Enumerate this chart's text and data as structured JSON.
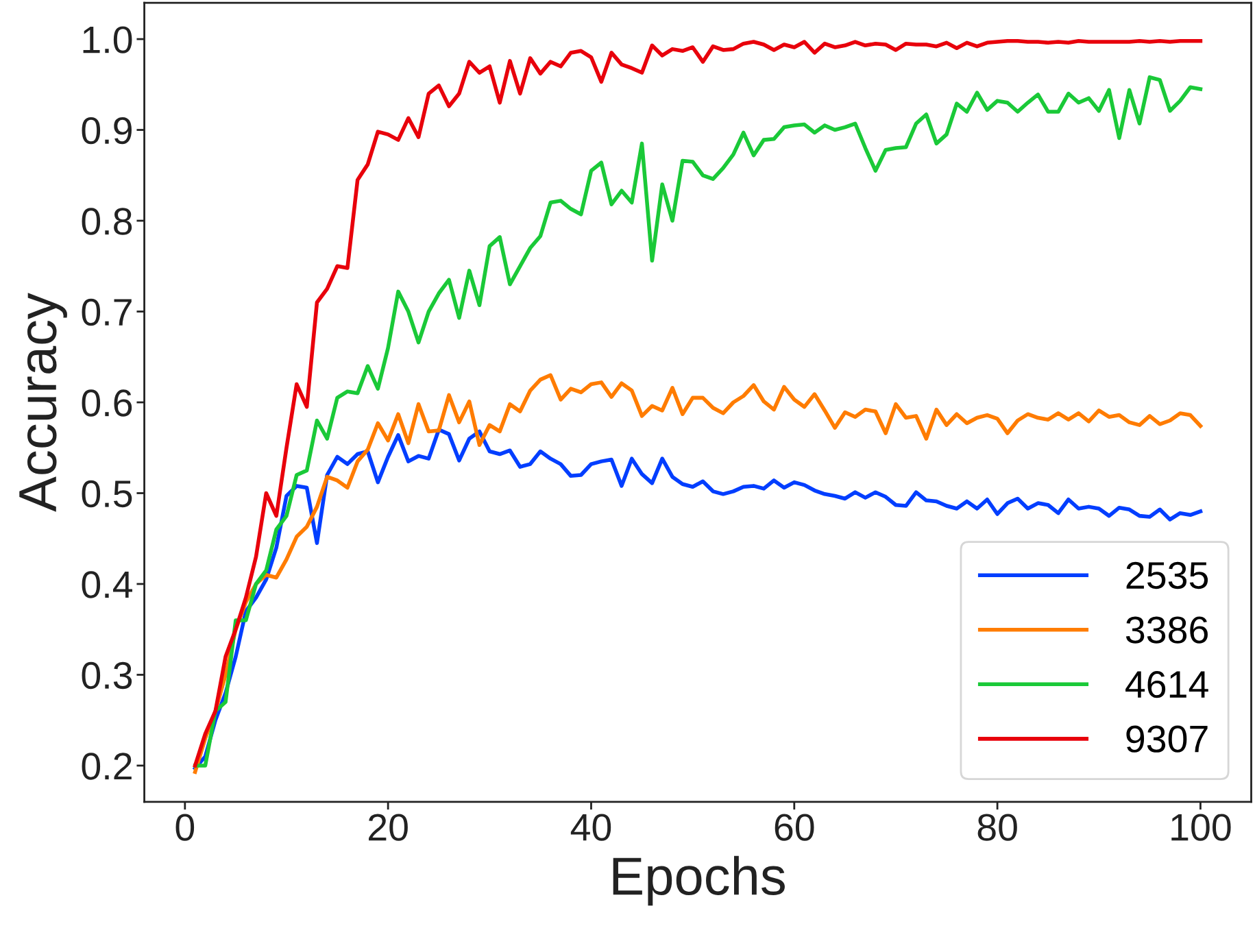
{
  "chart_data": {
    "type": "line",
    "xlabel": "Epochs",
    "ylabel": "Accuracy",
    "x": [
      1,
      2,
      3,
      4,
      5,
      6,
      7,
      8,
      9,
      10,
      11,
      12,
      13,
      14,
      15,
      16,
      17,
      18,
      19,
      20,
      21,
      22,
      23,
      24,
      25,
      26,
      27,
      28,
      29,
      30,
      31,
      32,
      33,
      34,
      35,
      36,
      37,
      38,
      39,
      40,
      41,
      42,
      43,
      44,
      45,
      46,
      47,
      48,
      49,
      50,
      51,
      52,
      53,
      54,
      55,
      56,
      57,
      58,
      59,
      60,
      61,
      62,
      63,
      64,
      65,
      66,
      67,
      68,
      69,
      70,
      71,
      72,
      73,
      74,
      75,
      76,
      77,
      78,
      79,
      80,
      81,
      82,
      83,
      84,
      85,
      86,
      87,
      88,
      89,
      90,
      91,
      92,
      93,
      94,
      95,
      96,
      97,
      98,
      99,
      100
    ],
    "series": [
      {
        "name": "2535",
        "color": "#023eff",
        "values": [
          0.197,
          0.21,
          0.25,
          0.28,
          0.32,
          0.37,
          0.385,
          0.405,
          0.44,
          0.497,
          0.508,
          0.506,
          0.445,
          0.52,
          0.54,
          0.532,
          0.543,
          0.546,
          0.512,
          0.54,
          0.564,
          0.535,
          0.541,
          0.538,
          0.57,
          0.565,
          0.536,
          0.56,
          0.568,
          0.546,
          0.543,
          0.547,
          0.529,
          0.532,
          0.546,
          0.538,
          0.532,
          0.519,
          0.52,
          0.532,
          0.535,
          0.537,
          0.508,
          0.538,
          0.521,
          0.511,
          0.538,
          0.518,
          0.51,
          0.507,
          0.513,
          0.502,
          0.499,
          0.502,
          0.507,
          0.508,
          0.505,
          0.514,
          0.506,
          0.512,
          0.509,
          0.503,
          0.499,
          0.497,
          0.494,
          0.501,
          0.495,
          0.501,
          0.496,
          0.487,
          0.486,
          0.501,
          0.492,
          0.491,
          0.486,
          0.483,
          0.491,
          0.483,
          0.493,
          0.477,
          0.489,
          0.494,
          0.483,
          0.489,
          0.487,
          0.478,
          0.493,
          0.483,
          0.485,
          0.483,
          0.475,
          0.484,
          0.482,
          0.475,
          0.474,
          0.482,
          0.471,
          0.478,
          0.476,
          0.48
        ]
      },
      {
        "name": "3386",
        "color": "#ff7c00",
        "values": [
          0.193,
          0.23,
          0.26,
          0.3,
          0.35,
          0.38,
          0.4,
          0.41,
          0.407,
          0.427,
          0.452,
          0.463,
          0.485,
          0.518,
          0.514,
          0.506,
          0.535,
          0.548,
          0.577,
          0.558,
          0.587,
          0.555,
          0.598,
          0.568,
          0.569,
          0.608,
          0.578,
          0.601,
          0.553,
          0.575,
          0.568,
          0.598,
          0.59,
          0.613,
          0.625,
          0.63,
          0.603,
          0.615,
          0.611,
          0.62,
          0.622,
          0.606,
          0.621,
          0.613,
          0.585,
          0.596,
          0.591,
          0.616,
          0.587,
          0.605,
          0.605,
          0.594,
          0.588,
          0.6,
          0.607,
          0.619,
          0.601,
          0.592,
          0.617,
          0.603,
          0.595,
          0.609,
          0.591,
          0.572,
          0.589,
          0.584,
          0.592,
          0.59,
          0.566,
          0.598,
          0.583,
          0.585,
          0.56,
          0.592,
          0.575,
          0.587,
          0.577,
          0.583,
          0.586,
          0.582,
          0.566,
          0.58,
          0.587,
          0.583,
          0.581,
          0.588,
          0.581,
          0.588,
          0.579,
          0.591,
          0.584,
          0.586,
          0.578,
          0.575,
          0.585,
          0.576,
          0.58,
          0.588,
          0.586,
          0.574
        ]
      },
      {
        "name": "4614",
        "color": "#1ac938",
        "values": [
          0.2,
          0.2,
          0.26,
          0.27,
          0.36,
          0.36,
          0.4,
          0.415,
          0.46,
          0.475,
          0.52,
          0.525,
          0.58,
          0.56,
          0.605,
          0.612,
          0.61,
          0.64,
          0.615,
          0.66,
          0.722,
          0.7,
          0.666,
          0.7,
          0.72,
          0.735,
          0.693,
          0.745,
          0.707,
          0.772,
          0.782,
          0.73,
          0.75,
          0.77,
          0.783,
          0.82,
          0.822,
          0.813,
          0.807,
          0.855,
          0.864,
          0.818,
          0.833,
          0.82,
          0.885,
          0.756,
          0.84,
          0.8,
          0.866,
          0.865,
          0.85,
          0.846,
          0.858,
          0.873,
          0.897,
          0.872,
          0.889,
          0.89,
          0.903,
          0.905,
          0.906,
          0.897,
          0.905,
          0.9,
          0.903,
          0.907,
          0.88,
          0.855,
          0.878,
          0.88,
          0.881,
          0.907,
          0.917,
          0.885,
          0.895,
          0.929,
          0.92,
          0.941,
          0.922,
          0.932,
          0.93,
          0.92,
          0.93,
          0.939,
          0.92,
          0.92,
          0.94,
          0.93,
          0.935,
          0.921,
          0.944,
          0.891,
          0.944,
          0.907,
          0.958,
          0.955,
          0.921,
          0.932,
          0.947,
          0.945
        ]
      },
      {
        "name": "9307",
        "color": "#e8000b",
        "values": [
          0.2,
          0.235,
          0.26,
          0.32,
          0.35,
          0.385,
          0.43,
          0.5,
          0.475,
          0.55,
          0.62,
          0.595,
          0.71,
          0.725,
          0.75,
          0.748,
          0.845,
          0.862,
          0.898,
          0.895,
          0.889,
          0.913,
          0.892,
          0.94,
          0.949,
          0.926,
          0.94,
          0.975,
          0.963,
          0.97,
          0.93,
          0.976,
          0.94,
          0.979,
          0.962,
          0.975,
          0.97,
          0.985,
          0.987,
          0.98,
          0.953,
          0.985,
          0.972,
          0.968,
          0.963,
          0.993,
          0.982,
          0.989,
          0.987,
          0.991,
          0.975,
          0.992,
          0.988,
          0.989,
          0.995,
          0.997,
          0.994,
          0.988,
          0.994,
          0.991,
          0.997,
          0.985,
          0.995,
          0.991,
          0.993,
          0.997,
          0.993,
          0.995,
          0.994,
          0.988,
          0.995,
          0.994,
          0.994,
          0.992,
          0.996,
          0.99,
          0.996,
          0.992,
          0.996,
          0.997,
          0.998,
          0.998,
          0.997,
          0.997,
          0.996,
          0.997,
          0.996,
          0.998,
          0.997,
          0.997,
          0.997,
          0.997,
          0.997,
          0.998,
          0.997,
          0.998,
          0.997,
          0.998,
          0.998,
          0.998
        ]
      }
    ],
    "xlim": [
      -4,
      105
    ],
    "ylim": [
      0.16,
      1.04
    ],
    "xticks": [
      0,
      20,
      40,
      60,
      80,
      100
    ],
    "yticks": [
      {
        "value": 0.2,
        "label": "0.2"
      },
      {
        "value": 0.3,
        "label": "0.3"
      },
      {
        "value": 0.4,
        "label": "0.4"
      },
      {
        "value": 0.5,
        "label": "0.5"
      },
      {
        "value": 0.6,
        "label": "0.6"
      },
      {
        "value": 0.7,
        "label": "0.7"
      },
      {
        "value": 0.8,
        "label": "0.8"
      },
      {
        "value": 0.9,
        "label": "0.9"
      },
      {
        "value": 1.0,
        "label": "1.0"
      }
    ],
    "grid": false,
    "legend": "lower right",
    "marker": "none",
    "line_style": "solid"
  }
}
